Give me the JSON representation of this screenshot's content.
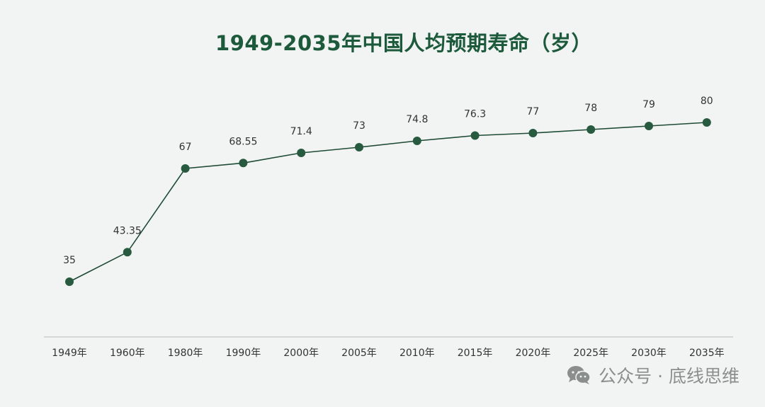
{
  "chart_data": {
    "type": "line",
    "title": "1949-2035年中国人均预期寿命（岁）",
    "categories": [
      "1949年",
      "1960年",
      "1980年",
      "1990年",
      "2000年",
      "2005年",
      "2010年",
      "2015年",
      "2020年",
      "2025年",
      "2030年",
      "2035年"
    ],
    "series": [
      {
        "values": [
          35,
          43.35,
          67,
          68.55,
          71.4,
          73,
          74.8,
          76.3,
          77,
          78,
          79,
          80
        ],
        "labels": [
          "35",
          "43.35",
          "67",
          "68.55",
          "71.4",
          "73",
          "74.8",
          "76.3",
          "77",
          "78",
          "79",
          "80"
        ]
      }
    ],
    "xlabel": "",
    "ylabel": "",
    "grid": false,
    "colors": {
      "line": "#1f4b36",
      "marker": "#285a3f",
      "title": "#1d5a3c",
      "axis": "#c9cfcc",
      "text": "#333333"
    }
  },
  "watermark": {
    "text": "公众号 · 底线思维",
    "icon": "wechat-icon"
  }
}
